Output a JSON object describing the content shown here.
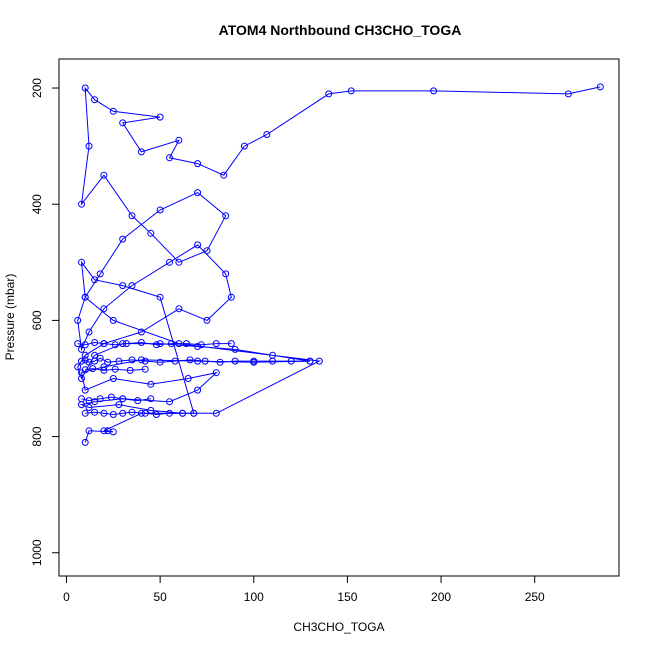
{
  "chart_data": {
    "type": "scatter",
    "title": "ATOM4 Northbound CH3CHO_TOGA",
    "xlabel": "CH3CHO_TOGA",
    "ylabel": "Pressure (mbar)",
    "xlim": [
      -4,
      295
    ],
    "ylim": [
      1040,
      150
    ],
    "y_reversed": true,
    "grid": false,
    "legend": "none",
    "x_ticks": [
      0,
      50,
      100,
      150,
      200,
      250
    ],
    "y_ticks": [
      200,
      400,
      600,
      800,
      1000
    ],
    "color": "#0000ff",
    "marker": "open-circle",
    "connected": true,
    "series": [
      {
        "x": [
          285,
          268,
          196,
          152,
          140,
          107,
          95,
          84,
          70,
          55,
          60,
          40,
          30,
          50,
          25,
          15,
          10,
          12,
          8,
          20,
          35,
          45,
          60,
          75,
          85,
          70,
          50,
          30,
          18,
          10,
          6,
          8,
          12,
          20,
          35,
          55,
          70,
          85,
          88,
          75,
          60,
          40,
          20,
          10,
          6,
          8,
          15,
          30,
          50,
          70,
          90,
          110,
          130,
          100,
          70,
          40,
          20,
          8,
          10,
          25,
          45,
          65,
          80,
          70,
          55,
          30,
          15,
          8,
          12,
          28,
          45,
          62,
          80,
          135,
          60,
          25,
          10,
          8,
          15,
          30,
          50,
          68,
          40,
          20,
          22,
          25,
          12,
          10
        ],
        "y": [
          198,
          210,
          205,
          205,
          210,
          280,
          300,
          350,
          330,
          320,
          290,
          310,
          260,
          250,
          240,
          220,
          200,
          300,
          400,
          350,
          420,
          450,
          500,
          480,
          420,
          380,
          410,
          460,
          520,
          560,
          600,
          650,
          620,
          580,
          540,
          500,
          470,
          520,
          560,
          600,
          580,
          620,
          640,
          660,
          680,
          700,
          660,
          640,
          640,
          645,
          650,
          660,
          670,
          672,
          670,
          668,
          680,
          690,
          720,
          700,
          710,
          700,
          690,
          720,
          740,
          735,
          740,
          745,
          750,
          745,
          755,
          760,
          760,
          670,
          640,
          600,
          560,
          500,
          530,
          540,
          560,
          760,
          760,
          790,
          790,
          792,
          790,
          810
        ]
      },
      {
        "x": [
          8,
          10,
          12,
          15,
          18,
          22,
          28,
          35,
          42,
          50,
          58,
          66,
          74,
          82,
          90,
          100,
          110,
          120,
          130
        ],
        "y": [
          670,
          668,
          672,
          670,
          665,
          672,
          670,
          668,
          670,
          672,
          670,
          668,
          670,
          672,
          670,
          670,
          670,
          670,
          670
        ]
      },
      {
        "x": [
          6,
          10,
          15,
          20,
          26,
          32,
          40,
          48,
          56,
          64,
          72,
          80,
          88
        ],
        "y": [
          640,
          642,
          638,
          640,
          642,
          640,
          638,
          642,
          640,
          640,
          642,
          640,
          640
        ]
      },
      {
        "x": [
          10,
          15,
          20,
          25,
          30,
          35,
          42,
          48,
          55,
          62,
          68
        ],
        "y": [
          760,
          758,
          760,
          762,
          760,
          758,
          760,
          762,
          760,
          760,
          760
        ]
      },
      {
        "x": [
          8,
          12,
          18,
          24,
          30,
          38,
          45
        ],
        "y": [
          735,
          738,
          735,
          732,
          735,
          738,
          735
        ]
      },
      {
        "x": [
          10,
          14,
          20,
          26,
          34,
          42
        ],
        "y": [
          685,
          683,
          686,
          684,
          686,
          684
        ]
      }
    ]
  }
}
